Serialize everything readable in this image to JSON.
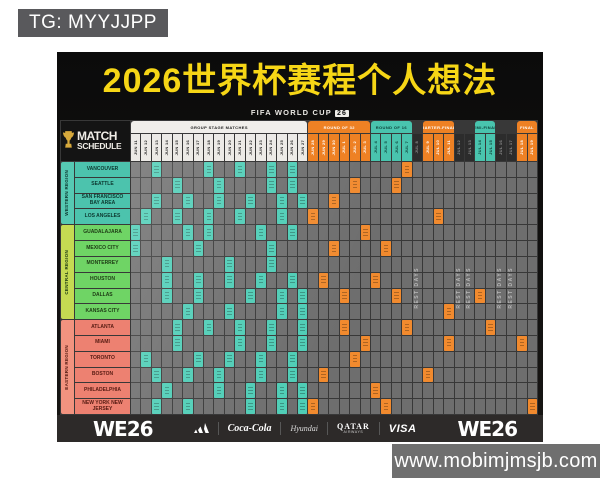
{
  "badge": {
    "text": "TG: MYYJJPP"
  },
  "watermark": {
    "text": "www.mobimjmsjb.com"
  },
  "poster": {
    "title": "2026世界杯赛程个人想法",
    "fifa_wordmark": "FIFA WORLD CUP",
    "fifa_logo": "26",
    "match_schedule": {
      "line1": "MATCH",
      "line2": "SCHEDULE"
    },
    "rest_label": "REST DAYS",
    "logo_text": "WE26",
    "colors": {
      "title_yellow": "#f6d616",
      "teal": "#49c4ae",
      "orange": "#ee8124",
      "group_header": "#eceae6",
      "cell_gray": "#6e6e6e",
      "grid_line": "#383838"
    },
    "stages": [
      {
        "id": "group",
        "label": "GROUP STAGE MATCHES",
        "style": "group",
        "dates": [
          "JUN 11",
          "JUN 12",
          "JUN 13",
          "JUN 14",
          "JUN 15",
          "JUN 16",
          "JUN 17",
          "JUN 18",
          "JUN 19",
          "JUN 20",
          "JUN 21",
          "JUN 22",
          "JUN 23",
          "JUN 24",
          "JUN 25",
          "JUN 26",
          "JUN 27"
        ]
      },
      {
        "id": "r32",
        "label": "ROUND OF 32",
        "style": "orange",
        "dates": [
          "JUN 28",
          "JUN 29",
          "JUN 30",
          "JUL 1",
          "JUL 2",
          "JUL 3"
        ]
      },
      {
        "id": "r16",
        "label": "ROUND OF 16",
        "style": "teal",
        "dates": [
          "JUL 4",
          "JUL 5",
          "JUL 6",
          "JUL 7"
        ]
      },
      {
        "id": "rest1",
        "label": "REST DAYS",
        "style": "rest",
        "dates": [
          "JUL 8"
        ]
      },
      {
        "id": "qf",
        "label": "QUARTER-FINALS",
        "style": "orange",
        "dates": [
          "JUL 9",
          "JUL 10",
          "JUL 11"
        ]
      },
      {
        "id": "rest2",
        "label": "REST DAYS",
        "style": "rest",
        "dates": [
          "JUL 12",
          "JUL 13"
        ]
      },
      {
        "id": "sf",
        "label": "SEMI-FINALS",
        "style": "teal",
        "dates": [
          "JUL 14",
          "JUL 15"
        ]
      },
      {
        "id": "rest3",
        "label": "REST DAYS",
        "style": "rest",
        "dates": [
          "JUL 16",
          "JUL 17"
        ]
      },
      {
        "id": "final",
        "label": "FINAL",
        "style": "orange",
        "dates": [
          "JUL 18",
          "JUL 19"
        ]
      }
    ],
    "rest_columns": [
      27,
      31,
      32,
      35,
      36
    ],
    "regions": [
      {
        "name": "WESTERN REGION",
        "label_bg": "#56c9b3",
        "city_bg": "#4cc3ad",
        "text": "#0d3830",
        "cities": [
          "VANCOUVER",
          "SEATTLE",
          "SAN FRANCISCO BAY AREA",
          "LOS ANGELES"
        ]
      },
      {
        "name": "CENTRAL REGION",
        "label_bg": "#c5da52",
        "city_bg": "#6fd465",
        "text": "#1d3a14",
        "cities": [
          "GUADALAJARA",
          "MEXICO CITY",
          "MONTERREY",
          "HOUSTON",
          "DALLAS",
          "KANSAS CITY"
        ]
      },
      {
        "name": "EASTERN REGION",
        "label_bg": "#f2937f",
        "city_bg": "#ed8171",
        "text": "#571b12",
        "cities": [
          "ATLANTA",
          "MIAMI",
          "TORONTO",
          "BOSTON",
          "PHILADELPHIA",
          "NEW YORK NEW JERSEY"
        ]
      }
    ],
    "match_cells": {
      "group": [
        [
          0,
          2
        ],
        [
          0,
          7
        ],
        [
          0,
          10
        ],
        [
          0,
          13
        ],
        [
          0,
          15
        ],
        [
          1,
          4
        ],
        [
          1,
          8
        ],
        [
          1,
          13
        ],
        [
          1,
          15
        ],
        [
          2,
          2
        ],
        [
          2,
          5
        ],
        [
          2,
          8
        ],
        [
          2,
          11
        ],
        [
          2,
          14
        ],
        [
          2,
          16
        ],
        [
          3,
          1
        ],
        [
          3,
          4
        ],
        [
          3,
          7
        ],
        [
          3,
          10
        ],
        [
          3,
          14
        ],
        [
          4,
          0
        ],
        [
          4,
          5
        ],
        [
          4,
          7
        ],
        [
          4,
          12
        ],
        [
          4,
          15
        ],
        [
          5,
          0
        ],
        [
          5,
          6
        ],
        [
          5,
          13
        ],
        [
          6,
          3
        ],
        [
          6,
          9
        ],
        [
          6,
          13
        ],
        [
          7,
          3
        ],
        [
          7,
          6
        ],
        [
          7,
          9
        ],
        [
          7,
          12
        ],
        [
          7,
          15
        ],
        [
          8,
          3
        ],
        [
          8,
          6
        ],
        [
          8,
          11
        ],
        [
          8,
          14
        ],
        [
          8,
          16
        ],
        [
          9,
          5
        ],
        [
          9,
          9
        ],
        [
          9,
          14
        ],
        [
          9,
          16
        ],
        [
          10,
          4
        ],
        [
          10,
          7
        ],
        [
          10,
          10
        ],
        [
          10,
          13
        ],
        [
          10,
          16
        ],
        [
          11,
          4
        ],
        [
          11,
          10
        ],
        [
          11,
          13
        ],
        [
          11,
          16
        ],
        [
          12,
          1
        ],
        [
          12,
          6
        ],
        [
          12,
          9
        ],
        [
          12,
          12
        ],
        [
          12,
          15
        ],
        [
          13,
          2
        ],
        [
          13,
          5
        ],
        [
          13,
          8
        ],
        [
          13,
          12
        ],
        [
          13,
          15
        ],
        [
          14,
          3
        ],
        [
          14,
          8
        ],
        [
          14,
          11
        ],
        [
          14,
          14
        ],
        [
          14,
          16
        ],
        [
          15,
          2
        ],
        [
          15,
          5
        ],
        [
          15,
          11
        ],
        [
          15,
          14
        ],
        [
          15,
          16
        ]
      ],
      "knockout": [
        [
          3,
          17
        ],
        [
          15,
          17
        ],
        [
          7,
          18
        ],
        [
          13,
          18
        ],
        [
          2,
          19
        ],
        [
          5,
          19
        ],
        [
          8,
          20
        ],
        [
          10,
          20
        ],
        [
          1,
          21
        ],
        [
          12,
          21
        ],
        [
          4,
          22
        ],
        [
          11,
          22
        ],
        [
          7,
          23
        ],
        [
          14,
          23
        ],
        [
          5,
          24
        ],
        [
          15,
          24
        ],
        [
          1,
          25
        ],
        [
          8,
          25
        ],
        [
          0,
          26
        ],
        [
          10,
          26
        ],
        [
          13,
          28
        ],
        [
          3,
          29
        ],
        [
          9,
          30
        ],
        [
          11,
          30
        ],
        [
          8,
          33
        ],
        [
          10,
          34
        ],
        [
          11,
          37
        ],
        [
          15,
          38
        ]
      ]
    },
    "sponsors": [
      {
        "text": "adidas",
        "style": "adidas"
      },
      {
        "text": "Coca-Cola",
        "style": "script"
      },
      {
        "text": "Hyundai",
        "style": "hyundai"
      },
      {
        "text": "QATAR",
        "sub": "AIRWAYS",
        "style": "qatar"
      },
      {
        "text": "VISA",
        "style": "visa"
      }
    ]
  }
}
